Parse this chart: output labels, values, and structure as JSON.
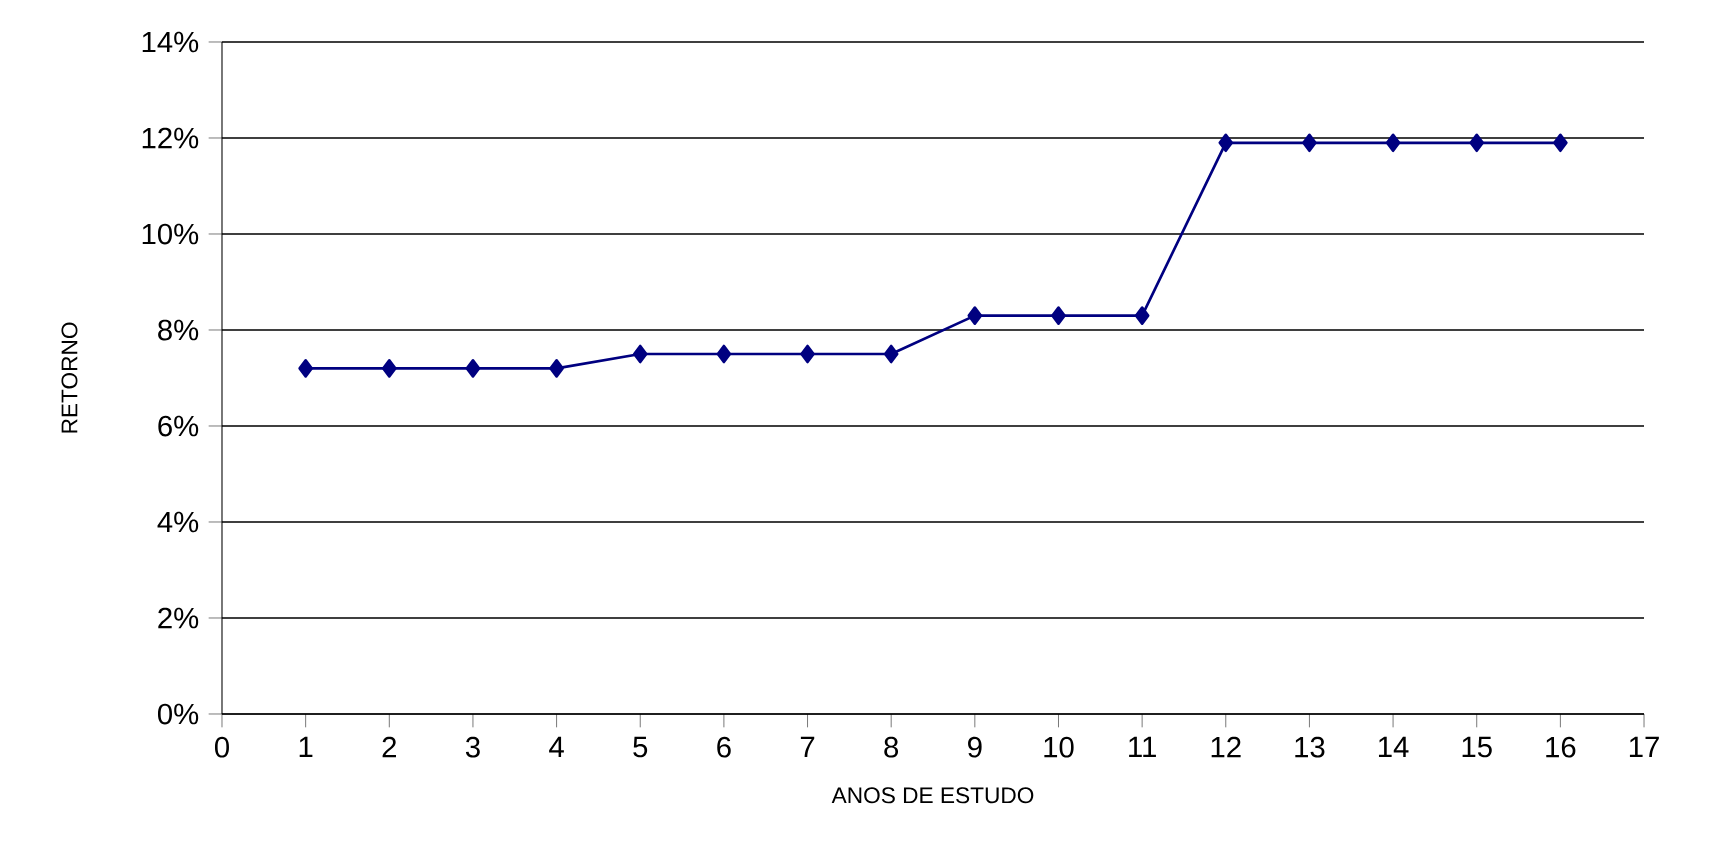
{
  "chart_data": {
    "type": "line",
    "xlabel": "ANOS DE ESTUDO",
    "ylabel": "RETORNO",
    "x": [
      1,
      2,
      3,
      4,
      5,
      6,
      7,
      8,
      9,
      10,
      11,
      12,
      13,
      14,
      15,
      16
    ],
    "series": [
      {
        "color": "#000080",
        "values": [
          7.2,
          7.2,
          7.2,
          7.2,
          7.5,
          7.5,
          7.5,
          7.5,
          8.3,
          8.3,
          8.3,
          11.9,
          11.9,
          11.9,
          11.9,
          11.9
        ]
      }
    ],
    "xlim": [
      0,
      17
    ],
    "xticks": [
      0,
      1,
      2,
      3,
      4,
      5,
      6,
      7,
      8,
      9,
      10,
      11,
      12,
      13,
      14,
      15,
      16,
      17
    ],
    "ylim": [
      0,
      14
    ],
    "yticks": [
      {
        "value": 0,
        "label": "0%"
      },
      {
        "value": 2,
        "label": "2%"
      },
      {
        "value": 4,
        "label": "4%"
      },
      {
        "value": 6,
        "label": "6%"
      },
      {
        "value": 8,
        "label": "8%"
      },
      {
        "value": 10,
        "label": "10%"
      },
      {
        "value": 12,
        "label": "12%"
      },
      {
        "value": 14,
        "label": "14%"
      }
    ],
    "grid": "y",
    "marker": "diamond",
    "line_style": "solid"
  }
}
